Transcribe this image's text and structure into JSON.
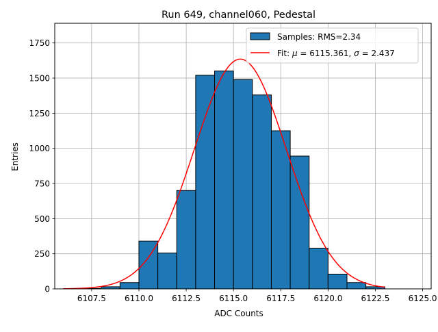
{
  "chart_data": {
    "type": "histogram",
    "title": "Run 649, channel060, Pedestal",
    "xlabel": "ADC Counts",
    "ylabel": "Entries",
    "xlim": [
      6105.55,
      6125.45
    ],
    "ylim": [
      0,
      1890
    ],
    "grid": true,
    "legend_position": "top-right",
    "xticks": [
      6107.5,
      6110.0,
      6112.5,
      6115.0,
      6117.5,
      6120.0,
      6122.5,
      6125.0
    ],
    "xtick_labels": [
      "6107.5",
      "6110.0",
      "6112.5",
      "6115.0",
      "6117.5",
      "6120.0",
      "6122.5",
      "6125.0"
    ],
    "yticks": [
      0,
      250,
      500,
      750,
      1000,
      1250,
      1500,
      1750
    ],
    "ytick_labels": [
      "0",
      "250",
      "500",
      "750",
      "1000",
      "1250",
      "1500",
      "1750"
    ],
    "bin_edges": [
      6107,
      6108,
      6109,
      6110,
      6111,
      6112,
      6113,
      6114,
      6115,
      6116,
      6117,
      6118,
      6119,
      6120,
      6121,
      6122,
      6123
    ],
    "counts": [
      3,
      15,
      45,
      340,
      255,
      700,
      1520,
      1550,
      1490,
      1380,
      1125,
      945,
      290,
      105,
      45,
      15
    ],
    "fit": {
      "model": "gaussian",
      "mu": 6115.361,
      "sigma": 2.437,
      "amplitude": 1635,
      "x_range": [
        6106,
        6123
      ]
    },
    "series": [
      {
        "name": "Samples: RMS=2.34",
        "kind": "histogram",
        "color": "#1f77b4"
      },
      {
        "name": "Fit: μ = 6115.361, σ = 2.437",
        "kind": "line",
        "color": "#ff0000"
      }
    ],
    "legend": {
      "samples_label": "Samples: RMS=2.34",
      "fit_prefix": "Fit: ",
      "fit_mu_symbol": "μ",
      "fit_mu_value": " = 6115.361, ",
      "fit_sigma_symbol": "σ",
      "fit_sigma_value": " = 2.437"
    }
  }
}
